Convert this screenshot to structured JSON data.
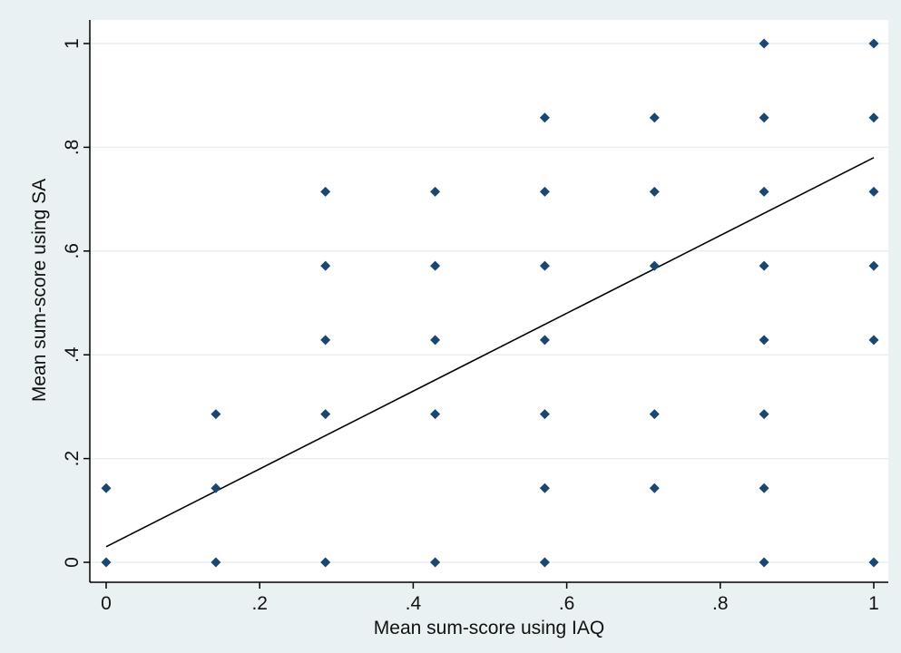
{
  "chart_data": {
    "type": "scatter",
    "xlabel": "Mean sum-score using IAQ",
    "ylabel": "Mean sum-score using SA",
    "xlim": [
      -0.01,
      1.01
    ],
    "ylim": [
      -0.02,
      1.0
    ],
    "x_ticks": [
      0,
      0.2,
      0.4,
      0.6,
      0.8,
      1
    ],
    "x_tick_labels": [
      "0",
      ".2",
      ".4",
      ".6",
      ".8",
      "1"
    ],
    "y_ticks": [
      0,
      0.2,
      0.4,
      0.6,
      0.8,
      1
    ],
    "y_tick_labels": [
      "0",
      ".2",
      ".4",
      ".6",
      ".8",
      "1"
    ],
    "grid": true,
    "grid_axis": "y",
    "marker": "diamond",
    "marker_color": "#1a476f",
    "points": [
      {
        "x": 0,
        "y": 0
      },
      {
        "x": 0,
        "y": 0.1429
      },
      {
        "x": 0.1429,
        "y": 0
      },
      {
        "x": 0.1429,
        "y": 0.1429
      },
      {
        "x": 0.1429,
        "y": 0.2857
      },
      {
        "x": 0.2857,
        "y": 0
      },
      {
        "x": 0.2857,
        "y": 0.2857
      },
      {
        "x": 0.2857,
        "y": 0.4286
      },
      {
        "x": 0.2857,
        "y": 0.5714
      },
      {
        "x": 0.2857,
        "y": 0.7143
      },
      {
        "x": 0.4286,
        "y": 0
      },
      {
        "x": 0.4286,
        "y": 0.2857
      },
      {
        "x": 0.4286,
        "y": 0.4286
      },
      {
        "x": 0.4286,
        "y": 0.5714
      },
      {
        "x": 0.4286,
        "y": 0.7143
      },
      {
        "x": 0.5714,
        "y": 0
      },
      {
        "x": 0.5714,
        "y": 0.1429
      },
      {
        "x": 0.5714,
        "y": 0.2857
      },
      {
        "x": 0.5714,
        "y": 0.4286
      },
      {
        "x": 0.5714,
        "y": 0.5714
      },
      {
        "x": 0.5714,
        "y": 0.7143
      },
      {
        "x": 0.5714,
        "y": 0.8571
      },
      {
        "x": 0.7143,
        "y": 0.1429
      },
      {
        "x": 0.7143,
        "y": 0.2857
      },
      {
        "x": 0.7143,
        "y": 0.5714
      },
      {
        "x": 0.7143,
        "y": 0.7143
      },
      {
        "x": 0.7143,
        "y": 0.8571
      },
      {
        "x": 0.8571,
        "y": 0
      },
      {
        "x": 0.8571,
        "y": 0.1429
      },
      {
        "x": 0.8571,
        "y": 0.2857
      },
      {
        "x": 0.8571,
        "y": 0.4286
      },
      {
        "x": 0.8571,
        "y": 0.5714
      },
      {
        "x": 0.8571,
        "y": 0.7143
      },
      {
        "x": 0.8571,
        "y": 0.8571
      },
      {
        "x": 0.8571,
        "y": 1
      },
      {
        "x": 1,
        "y": 0
      },
      {
        "x": 1,
        "y": 0.4286
      },
      {
        "x": 1,
        "y": 0.5714
      },
      {
        "x": 1,
        "y": 0.7143
      },
      {
        "x": 1,
        "y": 0.8571
      },
      {
        "x": 1,
        "y": 1
      }
    ],
    "fit_line": {
      "x": [
        0,
        1
      ],
      "y": [
        0.03,
        0.78
      ],
      "color": "#000000"
    }
  }
}
